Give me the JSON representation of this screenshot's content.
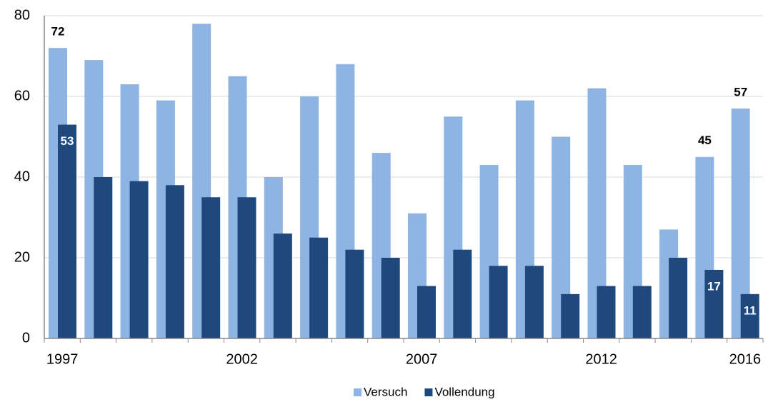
{
  "chart_data": {
    "type": "bar",
    "categories": [
      "1997",
      null,
      null,
      null,
      null,
      "2002",
      null,
      null,
      null,
      null,
      "2007",
      null,
      null,
      null,
      null,
      "2012",
      null,
      null,
      null,
      "2016"
    ],
    "series": [
      {
        "name": "Versuch",
        "color": "#8db4e2",
        "values": [
          72,
          69,
          63,
          59,
          78,
          65,
          40,
          60,
          68,
          46,
          31,
          55,
          43,
          59,
          50,
          62,
          43,
          27,
          45,
          57
        ],
        "value_labels": [
          "72",
          null,
          null,
          null,
          null,
          null,
          null,
          null,
          null,
          null,
          null,
          null,
          null,
          null,
          null,
          null,
          null,
          null,
          "45",
          "57"
        ]
      },
      {
        "name": "Vollendung",
        "color": "#1f497d",
        "values": [
          53,
          40,
          39,
          38,
          35,
          35,
          26,
          25,
          22,
          20,
          13,
          22,
          18,
          18,
          11,
          13,
          13,
          20,
          17,
          11
        ],
        "value_labels": [
          "53",
          null,
          null,
          null,
          null,
          null,
          null,
          null,
          null,
          null,
          null,
          null,
          null,
          null,
          null,
          null,
          null,
          null,
          "17",
          "11"
        ]
      }
    ],
    "ylim": [
      0,
      80
    ],
    "yticks": [
      0,
      20,
      40,
      60,
      80
    ],
    "grid": true,
    "legend": "bottom"
  }
}
